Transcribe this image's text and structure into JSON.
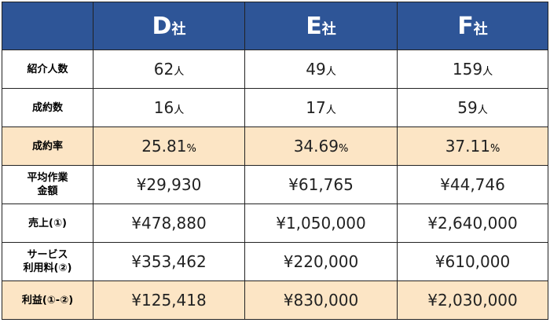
{
  "header": {
    "columns": [
      {
        "letter": "D",
        "suffix": "社"
      },
      {
        "letter": "E",
        "suffix": "社"
      },
      {
        "letter": "F",
        "suffix": "社"
      }
    ]
  },
  "table": {
    "rows": [
      {
        "label": [
          "紹介人数"
        ],
        "highlight": false,
        "cells": [
          {
            "number": "62",
            "unit": "人"
          },
          {
            "number": "49",
            "unit": "人"
          },
          {
            "number": "159",
            "unit": "人"
          }
        ]
      },
      {
        "label": [
          "成約数"
        ],
        "highlight": false,
        "cells": [
          {
            "number": "16",
            "unit": "人"
          },
          {
            "number": "17",
            "unit": "人"
          },
          {
            "number": "59",
            "unit": "人"
          }
        ]
      },
      {
        "label": [
          "成約率"
        ],
        "highlight": true,
        "cells": [
          {
            "number": "25.81",
            "unit": "%"
          },
          {
            "number": "34.69",
            "unit": "%"
          },
          {
            "number": "37.11",
            "unit": "%"
          }
        ]
      },
      {
        "label": [
          "平均作業",
          "金額"
        ],
        "highlight": false,
        "cells": [
          {
            "number": "¥29,930"
          },
          {
            "number": "¥61,765"
          },
          {
            "number": "¥44,746"
          }
        ]
      },
      {
        "label": [
          "売上(①)"
        ],
        "highlight": false,
        "cells": [
          {
            "number": "¥478,880"
          },
          {
            "number": "¥1,050,000"
          },
          {
            "number": "¥2,640,000"
          }
        ]
      },
      {
        "label": [
          "サービス",
          "利用料(②)"
        ],
        "highlight": false,
        "cells": [
          {
            "number": "¥353,462"
          },
          {
            "number": "¥220,000"
          },
          {
            "number": "¥610,000"
          }
        ]
      },
      {
        "label": [
          "利益(①-②)"
        ],
        "highlight": true,
        "cells": [
          {
            "number": "¥125,418"
          },
          {
            "number": "¥830,000"
          },
          {
            "number": "¥2,030,000"
          }
        ]
      }
    ]
  }
}
